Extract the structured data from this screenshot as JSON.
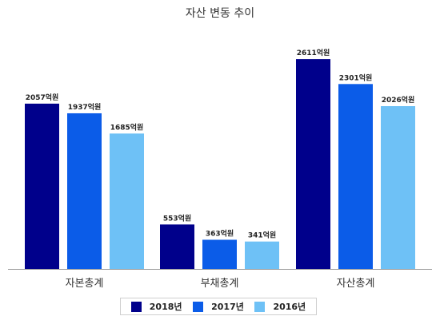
{
  "chart_data": {
    "type": "bar",
    "title": "자산 변동 추이",
    "categories": [
      "자본총계",
      "부채총계",
      "자산총계"
    ],
    "series": [
      {
        "name": "2018년",
        "color": "#00008b",
        "values": [
          2057,
          553,
          2611
        ],
        "labels": [
          "2057억원",
          "553억원",
          "2611억원"
        ]
      },
      {
        "name": "2017년",
        "color": "#0b5ce8",
        "values": [
          1937,
          363,
          2301
        ],
        "labels": [
          "1937억원",
          "363억원",
          "2301억원"
        ]
      },
      {
        "name": "2016년",
        "color": "#6ec1f6",
        "values": [
          1685,
          341,
          2026
        ],
        "labels": [
          "1685억원",
          "341억원",
          "2026억원"
        ]
      }
    ],
    "ylim": [
      0,
      2900
    ],
    "grid": false,
    "legend_position": "bottom"
  }
}
